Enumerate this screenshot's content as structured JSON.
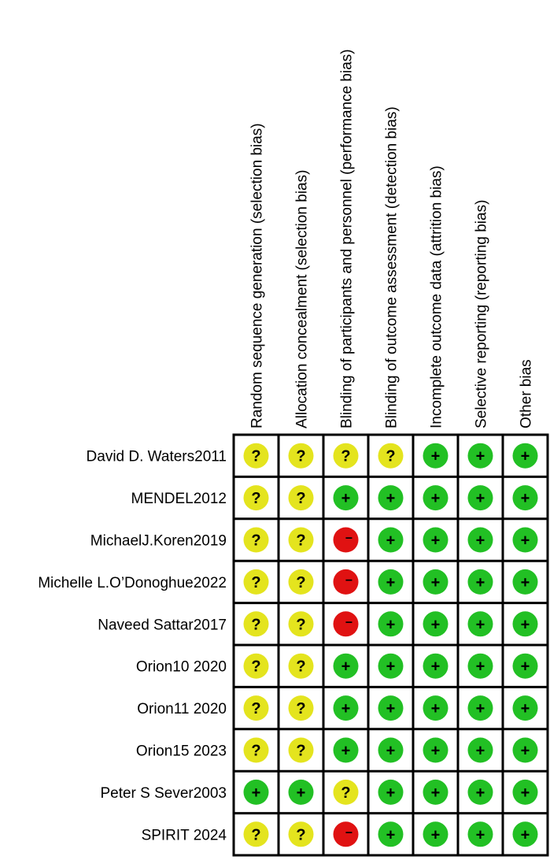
{
  "chart_data": {
    "type": "table",
    "domains": [
      "Random sequence generation (selection bias)",
      "Allocation concealment (selection bias)",
      "Blinding of participants and personnel (performance bias)",
      "Blinding of outcome assessment (detection bias)",
      "Incomplete outcome data (attrition bias)",
      "Selective reporting (reporting bias)",
      "Other bias"
    ],
    "studies": [
      {
        "name": "David D. Waters2011",
        "ratings": [
          "?",
          "?",
          "?",
          "?",
          "+",
          "+",
          "+"
        ]
      },
      {
        "name": "MENDEL2012",
        "ratings": [
          "?",
          "?",
          "+",
          "+",
          "+",
          "+",
          "+"
        ]
      },
      {
        "name": "MichaelJ.Koren2019",
        "ratings": [
          "?",
          "?",
          "-",
          "+",
          "+",
          "+",
          "+"
        ]
      },
      {
        "name": "Michelle L.O’Donoghue2022",
        "ratings": [
          "?",
          "?",
          "-",
          "+",
          "+",
          "+",
          "+"
        ]
      },
      {
        "name": "Naveed Sattar2017",
        "ratings": [
          "?",
          "?",
          "-",
          "+",
          "+",
          "+",
          "+"
        ]
      },
      {
        "name": "Orion10 2020",
        "ratings": [
          "?",
          "?",
          "+",
          "+",
          "+",
          "+",
          "+"
        ]
      },
      {
        "name": "Orion11 2020",
        "ratings": [
          "?",
          "?",
          "+",
          "+",
          "+",
          "+",
          "+"
        ]
      },
      {
        "name": "Orion15 2023",
        "ratings": [
          "?",
          "?",
          "+",
          "+",
          "+",
          "+",
          "+"
        ]
      },
      {
        "name": "Peter S Sever2003",
        "ratings": [
          "+",
          "+",
          "?",
          "+",
          "+",
          "+",
          "+"
        ]
      },
      {
        "name": "SPIRIT 2024",
        "ratings": [
          "?",
          "?",
          "-",
          "+",
          "+",
          "+",
          "+"
        ]
      }
    ],
    "rating_colors": {
      "+": "#22c024",
      "?": "#e4e41e",
      "-": "#e01212"
    },
    "rating_glyphs": {
      "+": "+",
      "?": "?",
      "-": "−"
    }
  }
}
